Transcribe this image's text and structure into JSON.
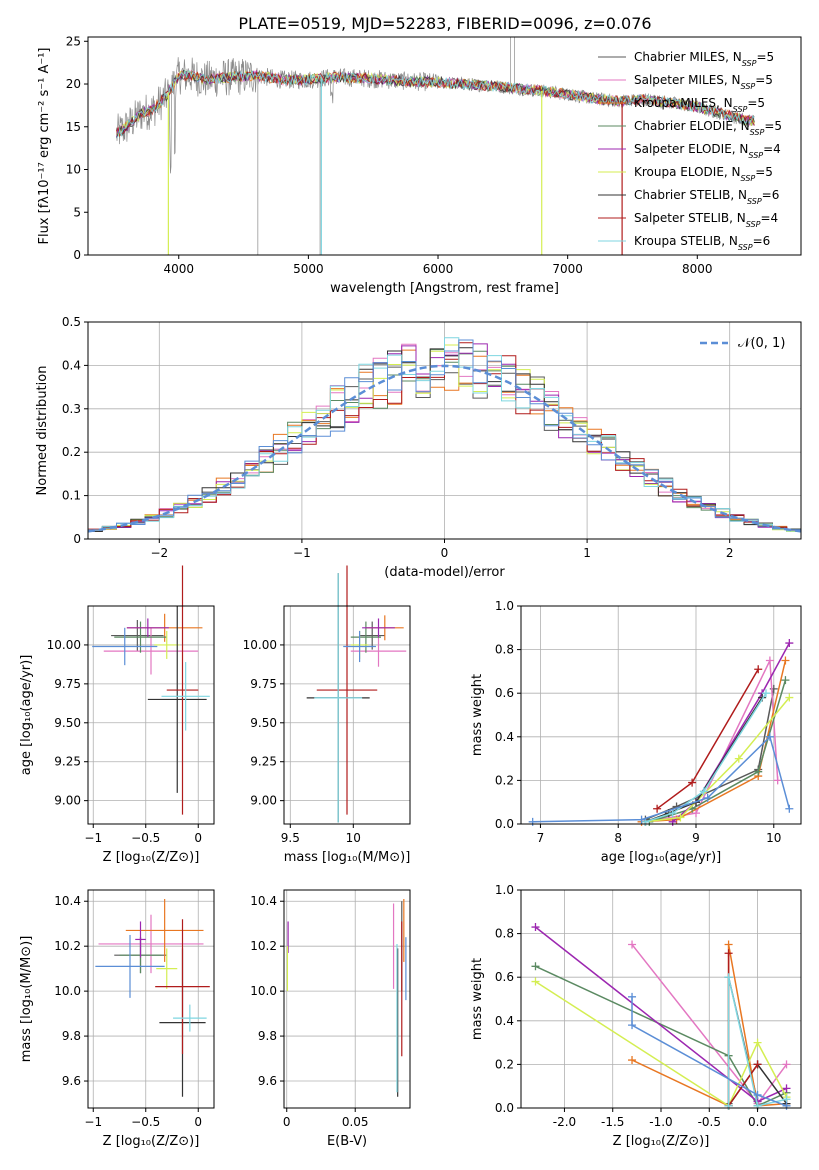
{
  "figure_title": "PLATE=0519, MJD=52283, FIBERID=0096, z=0.076",
  "colors": {
    "axis": "#000000",
    "grid": "#b0b0b0",
    "normal_curve": "#5b8ed6"
  },
  "models": [
    {
      "name": "Chabrier MILES",
      "nssp": "5",
      "color": "#5a5a5a"
    },
    {
      "name": "Salpeter MILES",
      "nssp": "5",
      "color": "#e377c2"
    },
    {
      "name": "Kroupa MILES",
      "nssp": "5",
      "color": "#e87722"
    },
    {
      "name": "Chabrier ELODIE",
      "nssp": "5",
      "color": "#5b8a62"
    },
    {
      "name": "Salpeter ELODIE",
      "nssp": "4",
      "color": "#9c27b0"
    },
    {
      "name": "Kroupa ELODIE",
      "nssp": "5",
      "color": "#d4ee52"
    },
    {
      "name": "Chabrier STELIB",
      "nssp": "6",
      "color": "#333333"
    },
    {
      "name": "Salpeter STELIB",
      "nssp": "4",
      "color": "#b01c1c"
    },
    {
      "name": "Kroupa STELIB",
      "nssp": "6",
      "color": "#7fd6e0"
    }
  ],
  "chart_data": [
    {
      "type": "line",
      "id": "spectrum",
      "xlabel": "wavelength [Angstrom, rest frame]",
      "ylabel": "Flux [fλ10⁻¹⁷ erg cm⁻² s⁻¹ A⁻¹]",
      "xlim": [
        3300,
        8800
      ],
      "ylim": [
        0,
        25.5
      ],
      "xticks": [
        4000,
        5000,
        6000,
        7000,
        8000
      ],
      "yticks": [
        0,
        5,
        10,
        15,
        20,
        25
      ],
      "legend_position": "top-right",
      "data_envelope": {
        "x": [
          3500,
          3600,
          3700,
          3800,
          3900,
          4000,
          4100,
          4200,
          4400,
          4600,
          4800,
          5000,
          5200,
          5400,
          5600,
          5800,
          6000,
          6200,
          6400,
          6600,
          6800,
          7000,
          7200,
          7400,
          7600,
          7800,
          8000,
          8200,
          8400
        ],
        "y": [
          14.0,
          15.0,
          16.5,
          17.0,
          18.5,
          21.0,
          21.0,
          20.5,
          20.8,
          21.0,
          20.5,
          20.5,
          20.8,
          20.7,
          20.5,
          20.3,
          20.2,
          20.0,
          19.8,
          19.5,
          19.2,
          18.8,
          18.3,
          18.0,
          18.2,
          17.8,
          17.3,
          16.5,
          15.7
        ]
      }
    },
    {
      "type": "histogram",
      "id": "residuals",
      "xlabel": "(data-model)/error",
      "ylabel": "Normed distribution",
      "xlim": [
        -2.5,
        2.5
      ],
      "ylim": [
        0,
        0.5
      ],
      "xticks": [
        -2,
        -1,
        0,
        1,
        2
      ],
      "yticks": [
        0.0,
        0.1,
        0.2,
        0.3,
        0.4,
        0.5
      ],
      "legend": "𝒩(0, 1)",
      "bin_width": 0.1,
      "normal": {
        "mu": 0,
        "sigma": 1
      }
    },
    {
      "type": "scatter",
      "id": "age_vs_Z",
      "xlabel": "Z [log₁₀(Z/Z⊙)]",
      "ylabel": "age  [log₁₀(age/yr)]",
      "xlim": [
        -1.05,
        0.15
      ],
      "ylim": [
        8.85,
        10.25
      ],
      "xticks": [
        -1.0,
        -0.5,
        0.0
      ],
      "yticks": [
        9.0,
        9.25,
        9.5,
        9.75,
        10.0
      ],
      "points": [
        {
          "x": -0.58,
          "y": 10.06,
          "xerr": 0.25,
          "yerr": 0.1,
          "color": "#5a5a5a"
        },
        {
          "x": -0.45,
          "y": 9.96,
          "xerr": 0.45,
          "yerr": 0.15,
          "color": "#e377c2"
        },
        {
          "x": -0.32,
          "y": 10.11,
          "xerr": 0.36,
          "yerr": 0.09,
          "color": "#e87722"
        },
        {
          "x": -0.55,
          "y": 10.05,
          "xerr": 0.25,
          "yerr": 0.1,
          "color": "#5b8a62"
        },
        {
          "x": -0.48,
          "y": 10.11,
          "xerr": 0.2,
          "yerr": 0.06,
          "color": "#9c27b0"
        },
        {
          "x": -0.3,
          "y": 10.0,
          "xerr": 0.12,
          "yerr": 0.09,
          "color": "#d4ee52"
        },
        {
          "x": -0.2,
          "y": 9.65,
          "xerr": 0.28,
          "yerr": 0.6,
          "color": "#333333"
        },
        {
          "x": -0.15,
          "y": 9.71,
          "xerr": 0.15,
          "yerr": 0.8,
          "color": "#b01c1c"
        },
        {
          "x": -0.12,
          "y": 9.67,
          "xerr": 0.23,
          "yerr": 0.22,
          "color": "#7fd6e0"
        },
        {
          "x": -0.7,
          "y": 9.99,
          "xerr": 0.31,
          "yerr": 0.12,
          "color": "#5b8ed6"
        }
      ]
    },
    {
      "type": "scatter",
      "id": "age_vs_mass",
      "xlabel": "mass [log₁₀(M/M⊙)]",
      "ylabel": "",
      "xlim": [
        9.45,
        10.45
      ],
      "ylim": [
        8.85,
        10.25
      ],
      "xticks": [
        9.5,
        10.0
      ],
      "yticks": [
        9.0,
        9.25,
        9.5,
        9.75,
        10.0
      ],
      "points": [
        {
          "x": 10.15,
          "y": 10.06,
          "xerr": 0.1,
          "yerr": 0.09,
          "color": "#5a5a5a"
        },
        {
          "x": 10.2,
          "y": 9.96,
          "xerr": 0.22,
          "yerr": 0.1,
          "color": "#e377c2"
        },
        {
          "x": 10.25,
          "y": 10.11,
          "xerr": 0.15,
          "yerr": 0.08,
          "color": "#e87722"
        },
        {
          "x": 10.1,
          "y": 10.05,
          "xerr": 0.12,
          "yerr": 0.1,
          "color": "#5b8a62"
        },
        {
          "x": 10.2,
          "y": 10.11,
          "xerr": 0.13,
          "yerr": 0.06,
          "color": "#9c27b0"
        },
        {
          "x": 10.05,
          "y": 10.0,
          "xerr": 0.07,
          "yerr": 0.09,
          "color": "#d4ee52"
        },
        {
          "x": 9.88,
          "y": 9.66,
          "xerr": 0.25,
          "yerr": 0.8,
          "color": "#333333"
        },
        {
          "x": 9.95,
          "y": 9.71,
          "xerr": 0.24,
          "yerr": 0.8,
          "color": "#b01c1c"
        },
        {
          "x": 9.88,
          "y": 9.66,
          "xerr": 0.19,
          "yerr": 0.8,
          "color": "#7fd6e0"
        },
        {
          "x": 10.05,
          "y": 9.99,
          "xerr": 0.13,
          "yerr": 0.1,
          "color": "#5b8ed6"
        }
      ]
    },
    {
      "type": "line",
      "id": "massweight_vs_age",
      "xlabel": "age  [log₁₀(age/yr)]",
      "ylabel": "mass weight",
      "xlim": [
        6.75,
        10.35
      ],
      "ylim": [
        0,
        1
      ],
      "xticks": [
        7,
        8,
        9,
        10
      ],
      "yticks": [
        0.0,
        0.2,
        0.4,
        0.6,
        0.8,
        1.0
      ],
      "series": [
        {
          "color": "#5a5a5a",
          "x": [
            8.35,
            8.75,
            9.8,
            10.0
          ],
          "y": [
            0.02,
            0.08,
            0.25,
            0.62
          ]
        },
        {
          "color": "#e377c2",
          "x": [
            8.35,
            9.0,
            9.95,
            10.05
          ],
          "y": [
            0.01,
            0.05,
            0.75,
            0.2
          ]
        },
        {
          "color": "#e87722",
          "x": [
            8.3,
            8.75,
            9.8,
            10.15
          ],
          "y": [
            0.01,
            0.02,
            0.22,
            0.75
          ]
        },
        {
          "color": "#5b8a62",
          "x": [
            8.4,
            8.95,
            9.8,
            10.15
          ],
          "y": [
            0.01,
            0.07,
            0.24,
            0.66
          ]
        },
        {
          "color": "#9c27b0",
          "x": [
            8.7,
            9.0,
            9.85,
            10.2
          ],
          "y": [
            0.01,
            0.1,
            0.6,
            0.83
          ]
        },
        {
          "color": "#d4ee52",
          "x": [
            8.35,
            8.8,
            9.55,
            10.2
          ],
          "y": [
            0.01,
            0.03,
            0.3,
            0.58
          ]
        },
        {
          "color": "#333333",
          "x": [
            8.35,
            8.65,
            9.0,
            9.85
          ],
          "y": [
            0.01,
            0.05,
            0.1,
            0.58
          ]
        },
        {
          "color": "#b01c1c",
          "x": [
            8.5,
            8.95,
            9.8
          ],
          "y": [
            0.07,
            0.19,
            0.71
          ]
        },
        {
          "color": "#7fd6e0",
          "x": [
            8.35,
            8.7,
            9.1,
            9.9
          ],
          "y": [
            0.01,
            0.05,
            0.15,
            0.6
          ]
        },
        {
          "color": "#5b8ed6",
          "x": [
            6.9,
            8.3,
            9.15,
            9.95,
            10.2
          ],
          "y": [
            0.01,
            0.02,
            0.12,
            0.4,
            0.07
          ]
        }
      ]
    },
    {
      "type": "scatter",
      "id": "mass_vs_Z",
      "xlabel": "Z [log₁₀(Z/Z⊙)]",
      "ylabel": "mass [log₁₀(M/M⊙)]",
      "xlim": [
        -1.05,
        0.15
      ],
      "ylim": [
        9.48,
        10.45
      ],
      "xticks": [
        -1.0,
        -0.5,
        0.0
      ],
      "yticks": [
        9.6,
        9.8,
        10.0,
        10.2,
        10.4
      ],
      "points": [
        {
          "x": -0.55,
          "y": 10.16,
          "xerr": 0.25,
          "yerr": 0.08,
          "color": "#5a5a5a"
        },
        {
          "x": -0.45,
          "y": 10.21,
          "xerr": 0.5,
          "yerr": 0.13,
          "color": "#e377c2"
        },
        {
          "x": -0.32,
          "y": 10.27,
          "xerr": 0.37,
          "yerr": 0.14,
          "color": "#e87722"
        },
        {
          "x": -0.55,
          "y": 10.16,
          "xerr": 0.2,
          "yerr": 0.08,
          "color": "#5b8a62"
        },
        {
          "x": -0.55,
          "y": 10.23,
          "xerr": 0.05,
          "yerr": 0.08,
          "color": "#9c27b0"
        },
        {
          "x": -0.3,
          "y": 10.1,
          "xerr": 0.1,
          "yerr": 0.09,
          "color": "#d4ee52"
        },
        {
          "x": -0.15,
          "y": 9.86,
          "xerr": 0.22,
          "yerr": 0.33,
          "color": "#333333"
        },
        {
          "x": -0.15,
          "y": 10.02,
          "xerr": 0.26,
          "yerr": 0.3,
          "color": "#b01c1c"
        },
        {
          "x": -0.08,
          "y": 9.88,
          "xerr": 0.16,
          "yerr": 0.06,
          "color": "#7fd6e0"
        },
        {
          "x": -0.65,
          "y": 10.11,
          "xerr": 0.33,
          "yerr": 0.14,
          "color": "#5b8ed6"
        }
      ]
    },
    {
      "type": "scatter",
      "id": "mass_vs_ebv",
      "xlabel": "E(B-V)",
      "ylabel": "",
      "xlim": [
        -0.002,
        0.09
      ],
      "ylim": [
        9.48,
        10.45
      ],
      "xticks": [
        0.0,
        0.05
      ],
      "yticks": [
        9.6,
        9.8,
        10.0,
        10.2,
        10.4
      ],
      "points": [
        {
          "x": 0.084,
          "y": 10.2,
          "xerr": 0,
          "yerr": 0.2,
          "color": "#5a5a5a"
        },
        {
          "x": 0.078,
          "y": 10.2,
          "xerr": 0,
          "yerr": 0.19,
          "color": "#e377c2"
        },
        {
          "x": 0.0855,
          "y": 10.27,
          "xerr": 0,
          "yerr": 0.14,
          "color": "#e87722"
        },
        {
          "x": 0.001,
          "y": 10.24,
          "xerr": 0,
          "yerr": 0.07,
          "color": "#9c27b0"
        },
        {
          "x": 0.0005,
          "y": 10.1,
          "xerr": 0,
          "yerr": 0.1,
          "color": "#d4ee52"
        },
        {
          "x": 0.081,
          "y": 9.86,
          "xerr": 0,
          "yerr": 0.33,
          "color": "#333333"
        },
        {
          "x": 0.084,
          "y": 10.01,
          "xerr": 0,
          "yerr": 0.3,
          "color": "#b01c1c"
        },
        {
          "x": 0.0805,
          "y": 9.88,
          "xerr": 0,
          "yerr": 0.33,
          "color": "#7fd6e0"
        },
        {
          "x": 0.087,
          "y": 10.1,
          "xerr": 0,
          "yerr": 0.14,
          "color": "#5b8ed6"
        }
      ]
    },
    {
      "type": "line",
      "id": "massweight_vs_Z",
      "xlabel": "Z [log₁₀(Z/Z⊙)]",
      "ylabel": "mass weight",
      "xlim": [
        -2.45,
        0.45
      ],
      "ylim": [
        0,
        1
      ],
      "xticks": [
        -2.0,
        -1.5,
        -1.0,
        -0.5,
        0.0
      ],
      "yticks": [
        0.0,
        0.2,
        0.4,
        0.6,
        0.8,
        1.0
      ],
      "series": [
        {
          "color": "#5a5a5a",
          "x": [
            -0.3,
            -0.3,
            0.0
          ],
          "y": [
            0.02,
            0.6,
            0.03
          ]
        },
        {
          "color": "#e377c2",
          "x": [
            -1.3,
            0.0,
            0.3
          ],
          "y": [
            0.75,
            0.02,
            0.2
          ]
        },
        {
          "color": "#e87722",
          "x": [
            -1.3,
            -0.3,
            -0.3,
            0.0,
            0.3
          ],
          "y": [
            0.22,
            0.01,
            0.75,
            0.01,
            0.02
          ]
        },
        {
          "color": "#5b8a62",
          "x": [
            -2.3,
            -0.3,
            0.0,
            0.3
          ],
          "y": [
            0.65,
            0.24,
            0.01,
            0.07
          ]
        },
        {
          "color": "#9c27b0",
          "x": [
            -2.3,
            0.0,
            0.3
          ],
          "y": [
            0.83,
            0.03,
            0.09
          ]
        },
        {
          "color": "#d4ee52",
          "x": [
            -2.3,
            -0.3,
            0.0,
            0.3
          ],
          "y": [
            0.58,
            0.01,
            0.3,
            0.05
          ]
        },
        {
          "color": "#333333",
          "x": [
            -0.3,
            0.0,
            0.3
          ],
          "y": [
            0.01,
            0.2,
            0.02
          ]
        },
        {
          "color": "#b01c1c",
          "x": [
            -0.3,
            -0.3,
            0.0
          ],
          "y": [
            0.71,
            0.01,
            0.2
          ]
        },
        {
          "color": "#7fd6e0",
          "x": [
            -0.3,
            -0.3,
            0.0,
            0.3
          ],
          "y": [
            0.01,
            0.6,
            0.01,
            0.04
          ]
        },
        {
          "color": "#5b8ed6",
          "x": [
            -1.3,
            -1.3,
            0.0,
            0.3
          ],
          "y": [
            0.51,
            0.38,
            0.06,
            0.01
          ]
        }
      ]
    }
  ]
}
